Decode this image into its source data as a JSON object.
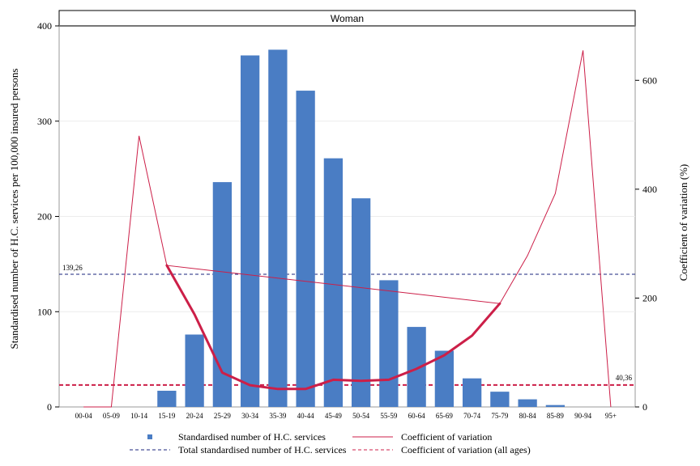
{
  "chart_data": {
    "type": "bar",
    "panel_title": "Woman",
    "ylabel": "Standardised number of H.C. services per 100,000 insured persons",
    "y2label": "Coefficient of variation (%)",
    "categories": [
      "00-04",
      "05-09",
      "10-14",
      "15-19",
      "20-24",
      "25-29",
      "30-34",
      "35-39",
      "40-44",
      "45-49",
      "50-54",
      "55-59",
      "60-64",
      "65-69",
      "70-74",
      "75-79",
      "80-84",
      "85-89",
      "90-94",
      "95+"
    ],
    "ylim": [
      0,
      400
    ],
    "y2lim": [
      0,
      700
    ],
    "yticks": [
      0,
      100,
      200,
      300,
      400
    ],
    "y2ticks": [
      0,
      200,
      400,
      600
    ],
    "series": [
      {
        "name": "Standardised number of H.C. services",
        "type": "bar",
        "axis": "left",
        "color": "#4a7dc4",
        "values": [
          0,
          0,
          0,
          17,
          76,
          236,
          369,
          375,
          332,
          261,
          219,
          133,
          84,
          59,
          30,
          16,
          8,
          2,
          0,
          0
        ]
      },
      {
        "name": "Coefficient of variation",
        "type": "line",
        "axis": "right",
        "color": "#cc1f48",
        "thin_values": [
          0,
          0,
          498,
          260,
          null,
          null,
          null,
          null,
          null,
          null,
          null,
          null,
          null,
          null,
          null,
          190,
          278,
          392,
          655,
          0
        ],
        "thick_values": [
          null,
          null,
          null,
          260,
          170,
          63,
          40,
          33,
          33,
          50,
          48,
          50,
          70,
          95,
          131,
          190,
          null,
          null,
          null,
          null
        ]
      },
      {
        "name": "Total standardised number of H.C. services",
        "type": "hline",
        "axis": "left",
        "color": "#1a237e",
        "value": 139.26,
        "label": "139,26"
      },
      {
        "name": "Coefficient of variation (all ages)",
        "type": "hline",
        "axis": "right",
        "color": "#cc1f48",
        "value": 40.36,
        "label": "40,36"
      }
    ],
    "legend_position": "bottom"
  }
}
